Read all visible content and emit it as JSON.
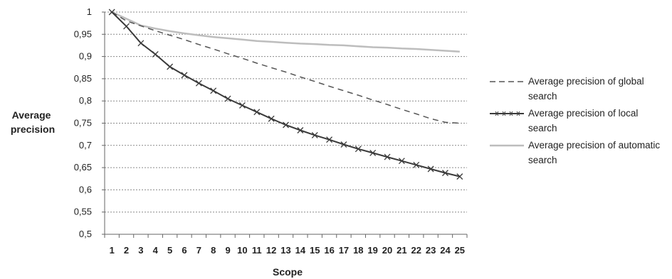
{
  "chart_data": {
    "type": "line",
    "title": "",
    "xlabel": "Scope",
    "ylabel": "Average precision",
    "ylabel_lines": [
      "Average",
      "precision"
    ],
    "categories": [
      "1",
      "2",
      "3",
      "4",
      "5",
      "6",
      "7",
      "8",
      "9",
      "10",
      "11",
      "12",
      "13",
      "14",
      "15",
      "16",
      "17",
      "18",
      "19",
      "20",
      "21",
      "22",
      "23",
      "24",
      "25"
    ],
    "ylim": [
      0.5,
      1
    ],
    "yticks": [
      0.5,
      0.55,
      0.6,
      0.65,
      0.7,
      0.75,
      0.8,
      0.85,
      0.9,
      0.95,
      1
    ],
    "ytick_labels": [
      "0,5",
      "0,55",
      "0,6",
      "0,65",
      "0,7",
      "0,75",
      "0,8",
      "0,85",
      "0,9",
      "0,95",
      "1"
    ],
    "grid": "horizontal dotted",
    "legend_position": "right",
    "series": [
      {
        "name": "Average precision of global search",
        "style": "dashed",
        "color": "#555555",
        "values": [
          1.0,
          0.98,
          0.969,
          0.958,
          0.948,
          0.938,
          0.927,
          0.917,
          0.906,
          0.896,
          0.885,
          0.875,
          0.865,
          0.854,
          0.844,
          0.833,
          0.823,
          0.813,
          0.802,
          0.792,
          0.781,
          0.771,
          0.76,
          0.752,
          0.75
        ]
      },
      {
        "name": "Average precision of local search",
        "style": "solid-x",
        "color": "#3a3a3a",
        "values": [
          1.0,
          0.968,
          0.93,
          0.905,
          0.877,
          0.858,
          0.84,
          0.823,
          0.805,
          0.79,
          0.775,
          0.76,
          0.746,
          0.734,
          0.723,
          0.713,
          0.702,
          0.692,
          0.683,
          0.674,
          0.665,
          0.656,
          0.647,
          0.638,
          0.63
        ]
      },
      {
        "name": "Average precision of automatic search",
        "style": "solid",
        "color": "#bdbdbd",
        "values": [
          1.0,
          0.985,
          0.97,
          0.963,
          0.957,
          0.952,
          0.948,
          0.944,
          0.941,
          0.938,
          0.935,
          0.933,
          0.931,
          0.929,
          0.928,
          0.926,
          0.925,
          0.923,
          0.921,
          0.92,
          0.918,
          0.917,
          0.915,
          0.913,
          0.911
        ]
      }
    ]
  }
}
